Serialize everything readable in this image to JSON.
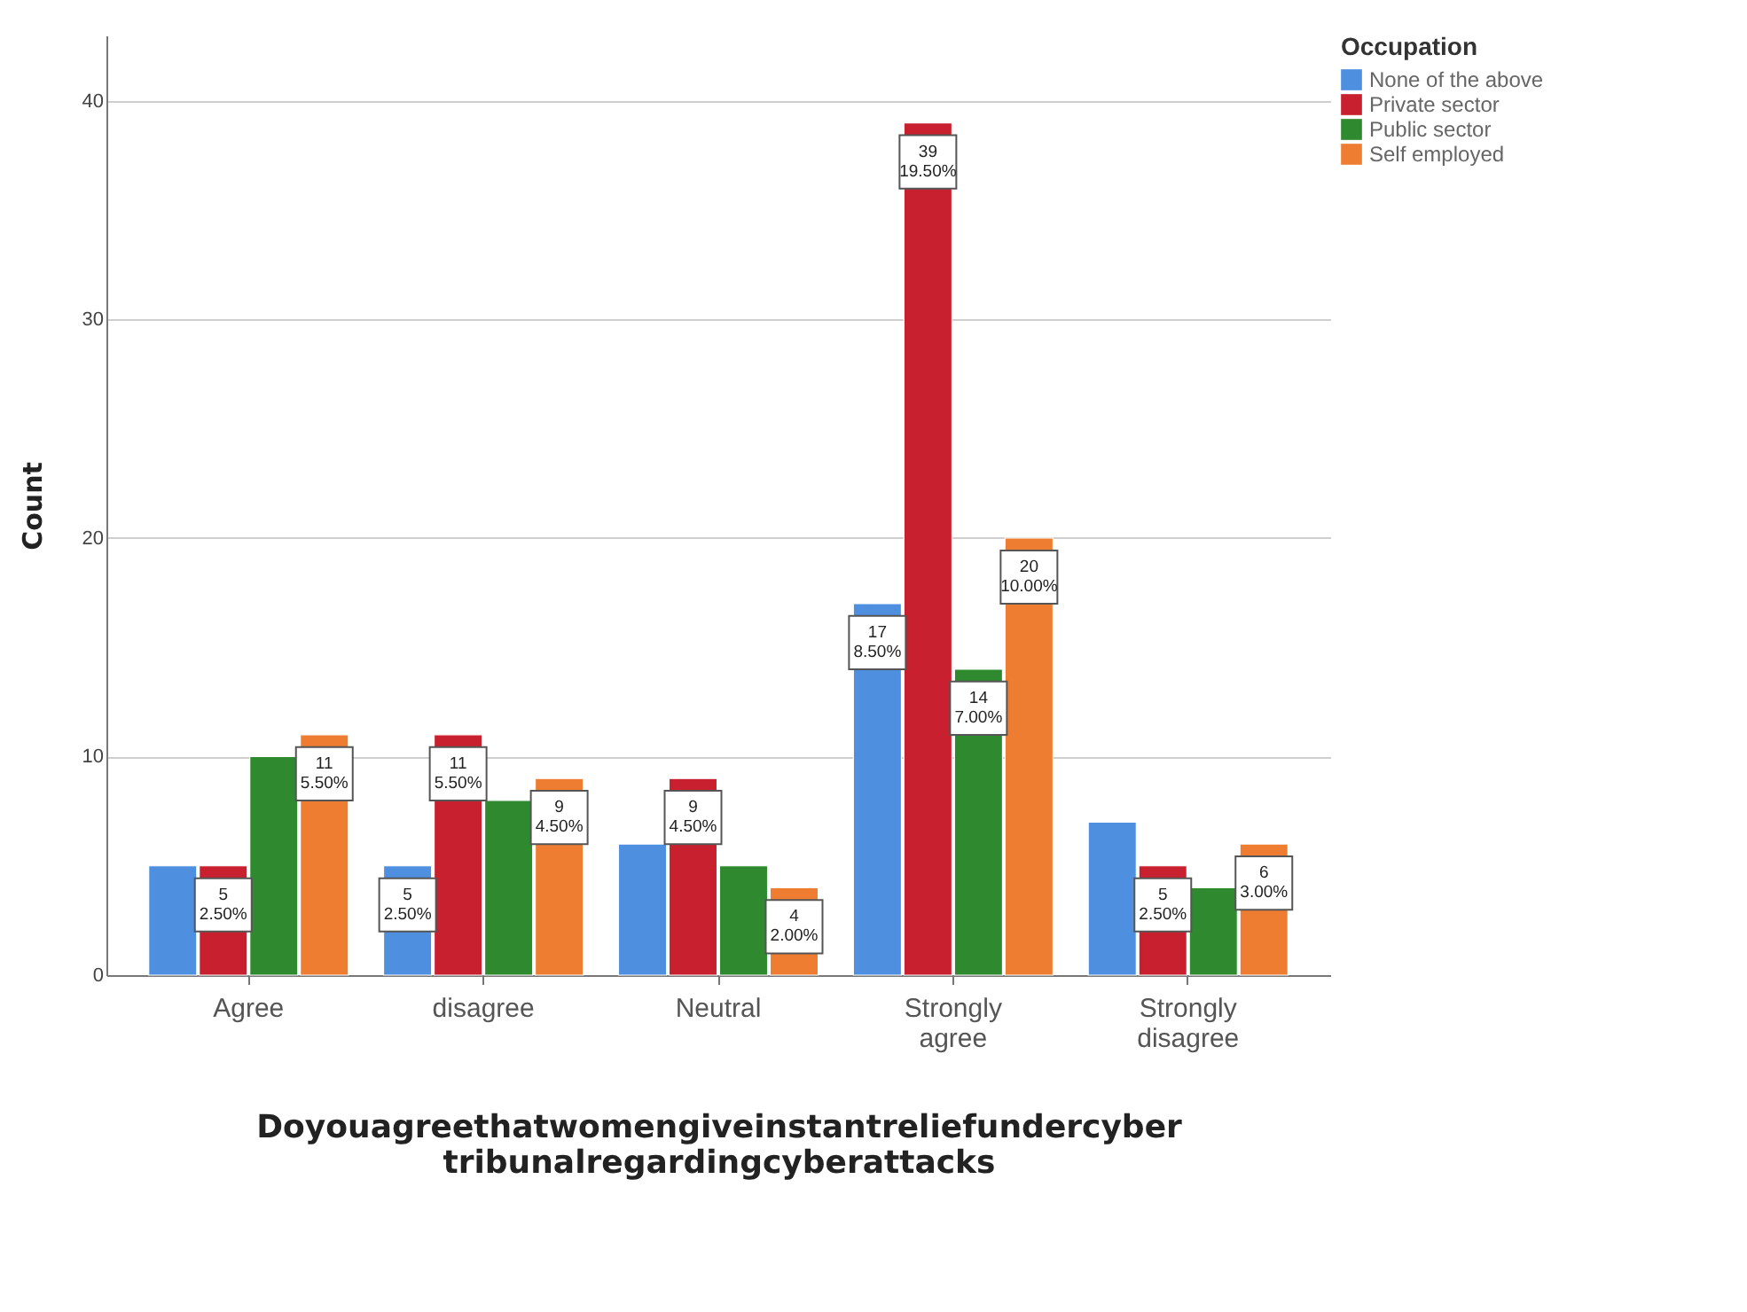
{
  "chart_data": {
    "type": "bar",
    "xlabel": "Doyouagreethatwomengiveinstantreliefundercyber tribunalregardingcyberattacks",
    "ylabel": "Count",
    "legend_title": "Occupation",
    "categories": [
      "Agree",
      "disagree",
      "Neutral",
      "Strongly agree",
      "Strongly disagree"
    ],
    "series": [
      {
        "name": "None of the above",
        "color": "#4e8fe0",
        "values": [
          5,
          5,
          6,
          17,
          7
        ],
        "value_labels": [
          null,
          "5\n2.50%",
          null,
          "17\n8.50%",
          null
        ]
      },
      {
        "name": "Private sector",
        "color": "#c8202f",
        "values": [
          5,
          11,
          9,
          39,
          5
        ],
        "value_labels": [
          "5\n2.50%",
          "11\n5.50%",
          "9\n4.50%",
          "39\n19.50%",
          "5\n2.50%"
        ]
      },
      {
        "name": "Public sector",
        "color": "#2f8a2f",
        "values": [
          10,
          8,
          5,
          14,
          4
        ],
        "value_labels": [
          null,
          null,
          null,
          "14\n7.00%",
          null
        ]
      },
      {
        "name": "Self employed",
        "color": "#ee7d31",
        "values": [
          11,
          9,
          4,
          20,
          6
        ],
        "value_labels": [
          "11\n5.50%",
          "9\n4.50%",
          "4\n2.00%",
          "20\n10.00%",
          "6\n3.00%"
        ]
      }
    ],
    "ylim": [
      0,
      43
    ],
    "yticks": [
      0,
      10,
      20,
      30,
      40
    ],
    "grid": "y",
    "legend": "top right"
  }
}
